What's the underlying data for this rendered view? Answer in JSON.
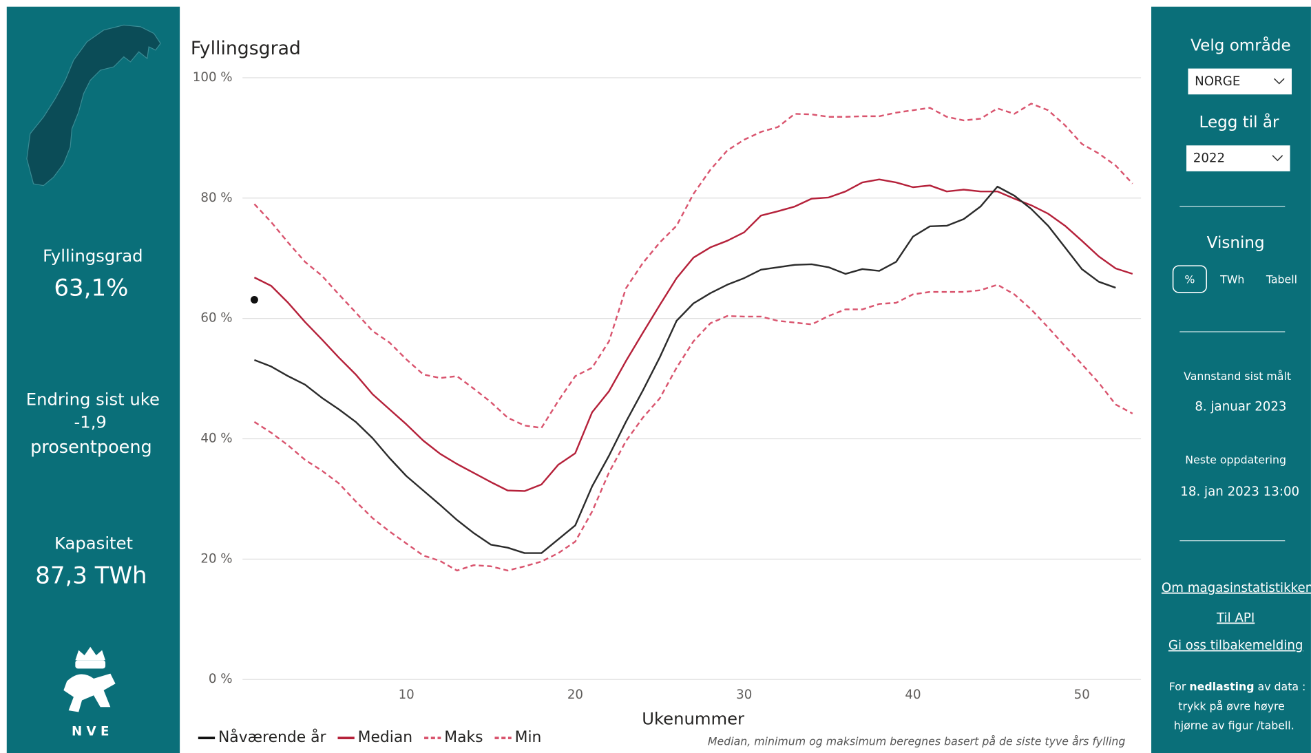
{
  "left_panel": {
    "fill_label": "Fyllingsgrad",
    "fill_value": "63,1%",
    "change_label": "Endring sist uke",
    "change_value": "-1,9",
    "change_unit": "prosentpoeng",
    "capacity_label": "Kapasitet",
    "capacity_value": "87,3 TWh",
    "logo_text": "N V E"
  },
  "right_panel": {
    "area_label": "Velg område",
    "area_value": "NORGE",
    "year_label": "Legg til år",
    "year_value": "2022",
    "view_label": "Visning",
    "view_options": [
      "%",
      "TWh",
      "Tabell"
    ],
    "measured_label": "Vannstand sist målt",
    "measured_value": "8. januar 2023",
    "next_label": "Neste oppdatering",
    "next_value": "18. jan 2023 13:00",
    "links": [
      "Om magasinstatistikken",
      "Til API",
      "Gi oss tilbakemelding"
    ],
    "note": [
      "For ",
      "nedlasting",
      " av data :",
      "trykk på øvre høyre",
      "hjørne av figur /tabell."
    ]
  },
  "chart_data": {
    "type": "line",
    "title": "Fyllingsgrad",
    "xlabel": "Ukenummer",
    "footnote": "Median, minimum og maksimum beregnes basert på de siste tyve års fylling",
    "x": [
      1,
      2,
      3,
      4,
      5,
      6,
      7,
      8,
      9,
      10,
      11,
      12,
      13,
      14,
      15,
      16,
      17,
      18,
      19,
      20,
      21,
      22,
      23,
      24,
      25,
      26,
      27,
      28,
      29,
      30,
      31,
      32,
      33,
      34,
      35,
      36,
      37,
      38,
      39,
      40,
      41,
      42,
      43,
      44,
      45,
      46,
      47,
      48,
      49,
      50,
      51,
      52,
      53
    ],
    "xlim": [
      0.5,
      53.5
    ],
    "xticks": [
      10,
      20,
      30,
      40,
      50
    ],
    "ylim": [
      0,
      100
    ],
    "yticks": [
      {
        "value": 0,
        "label": "0 %"
      },
      {
        "value": 20,
        "label": "20 %"
      },
      {
        "value": 40,
        "label": "40 %"
      },
      {
        "value": 60,
        "label": "60 %"
      },
      {
        "value": 80,
        "label": "80 %"
      },
      {
        "value": 100,
        "label": "100 %"
      }
    ],
    "grid": true,
    "legend": "bottom-left",
    "year_series": {
      "color": "#2b2b2b",
      "values": [
        53.1,
        52,
        50.4,
        49,
        46.8,
        44.9,
        42.8,
        40.1,
        36.8,
        33.8,
        31.4,
        29,
        26.5,
        24.3,
        22.4,
        21.9,
        21,
        21,
        23.3,
        25.6,
        32.1,
        37.2,
        42.8,
        48,
        53.5,
        59.6,
        62.5,
        64.2,
        65.6,
        66.7,
        68.1,
        68.5,
        68.9,
        69,
        68.5,
        67.4,
        68.2,
        67.9,
        69.4,
        73.6,
        75.3,
        75.4,
        76.5,
        78.6,
        81.9,
        80.4,
        78.2,
        75.4,
        71.8,
        68.2,
        66.1,
        65.1,
        null
      ]
    },
    "series": [
      {
        "name": "Nåværende år",
        "color": "#111111",
        "marker": "dot",
        "x": [
          1
        ],
        "values": [
          63.1
        ]
      },
      {
        "name": "Median",
        "color": "#b5213a",
        "dash": false,
        "values": [
          66.8,
          65.4,
          62.6,
          59.4,
          56.5,
          53.5,
          50.7,
          47.4,
          44.9,
          42.4,
          39.7,
          37.5,
          35.8,
          34.3,
          32.8,
          31.4,
          31.3,
          32.4,
          35.7,
          37.6,
          44.4,
          47.9,
          52.9,
          57.6,
          62.2,
          66.7,
          70.1,
          71.8,
          72.9,
          74.3,
          77.1,
          77.8,
          78.6,
          79.9,
          80.1,
          81.1,
          82.6,
          83.1,
          82.6,
          81.8,
          82.1,
          81.1,
          81.4,
          81.1,
          81.1,
          79.9,
          78.8,
          77.4,
          75.4,
          72.9,
          70.3,
          68.3,
          67.4
        ]
      },
      {
        "name": "Maks",
        "color": "#d9546e",
        "dash": true,
        "values": [
          79,
          76,
          72.6,
          69.4,
          67.1,
          64,
          61,
          57.9,
          56,
          53.2,
          50.7,
          50.1,
          50.4,
          48.3,
          46.1,
          43.5,
          42.2,
          41.8,
          46.3,
          50.4,
          51.8,
          56.2,
          65,
          69.2,
          72.6,
          75.4,
          80.7,
          84.7,
          87.9,
          89.7,
          91,
          91.8,
          94,
          93.9,
          93.5,
          93.5,
          93.6,
          93.6,
          94.2,
          94.6,
          95,
          93.5,
          92.9,
          93.2,
          94.9,
          94,
          95.7,
          94.6,
          92.1,
          89,
          87.4,
          85.4,
          82.4
        ]
      },
      {
        "name": "Min",
        "color": "#d9546e",
        "dash": true,
        "values": [
          42.8,
          41,
          38.9,
          36.5,
          34.7,
          32.6,
          29.6,
          26.8,
          24.6,
          22.6,
          20.6,
          19.7,
          18.1,
          19,
          18.8,
          18.1,
          18.8,
          19.6,
          21,
          22.9,
          27.9,
          34.4,
          39.6,
          43.5,
          46.7,
          51.8,
          56.2,
          59.2,
          60.4,
          60.3,
          60.3,
          59.6,
          59.3,
          59,
          60.4,
          61.5,
          61.5,
          62.4,
          62.6,
          64,
          64.4,
          64.4,
          64.4,
          64.7,
          65.6,
          64,
          61.5,
          58.5,
          55.4,
          52.4,
          49.3,
          45.7,
          44.2
        ]
      }
    ]
  }
}
